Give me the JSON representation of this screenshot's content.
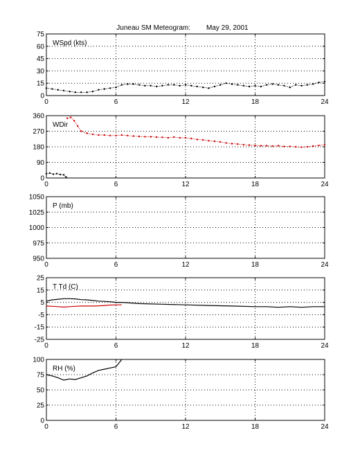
{
  "title": "Juneau SM Meteogram:",
  "date": "May 29, 2001",
  "colors": {
    "axis": "#000000",
    "grid": "#000000",
    "series_primary": "#000000",
    "series_dewpoint": "#cc0000"
  },
  "chart_data": [
    {
      "type": "scatter",
      "label": "WSpd (kts)",
      "xlim": [
        0,
        24
      ],
      "ylim": [
        0,
        75
      ],
      "grid": true,
      "xticks": [
        0,
        6,
        12,
        18,
        24
      ],
      "yticks": [
        0,
        15,
        30,
        45,
        60,
        75
      ],
      "series": [
        {
          "x": [
            0,
            0.5,
            1,
            1.5,
            2,
            2.5,
            3,
            3.5,
            4,
            4.5,
            5,
            5.5,
            6,
            6.5,
            7,
            7.5,
            8,
            8.5,
            9,
            9.5,
            10,
            10.5,
            11,
            11.5,
            12,
            12.5,
            13,
            13.5,
            14,
            14.5,
            15,
            15.5,
            16,
            16.5,
            17,
            17.5,
            18,
            18.5,
            19,
            19.5,
            20,
            20.5,
            21,
            21.5,
            22,
            22.5,
            23,
            23.5,
            24
          ],
          "y": [
            9,
            8,
            7,
            6,
            5,
            4,
            4,
            4,
            5,
            7,
            8,
            9,
            10,
            13,
            14,
            14,
            13,
            12,
            12,
            11,
            12,
            13,
            13,
            12,
            13,
            12,
            11,
            10,
            9,
            11,
            13,
            15,
            14,
            13,
            12,
            11,
            12,
            11,
            13,
            14,
            13,
            12,
            10,
            13,
            12,
            13,
            14,
            16,
            17
          ]
        }
      ]
    },
    {
      "type": "scatter",
      "label": "WDir",
      "xlim": [
        0,
        24
      ],
      "ylim": [
        0,
        360
      ],
      "grid": true,
      "xticks": [
        0,
        6,
        12,
        18,
        24
      ],
      "yticks": [
        0,
        90,
        180,
        270,
        360
      ],
      "series": [
        {
          "x": [
            0,
            0.3,
            0.6,
            0.9,
            1.2,
            1.5,
            1.7
          ],
          "y": [
            25,
            28,
            22,
            25,
            20,
            18,
            5
          ]
        },
        {
          "x": [
            1.8,
            2.1,
            2.4,
            2.7,
            3,
            3.5,
            4,
            4.5,
            5,
            5.5,
            6,
            6.5,
            7,
            7.5,
            8,
            8.5,
            9,
            9.5,
            10,
            10.5,
            11,
            11.5,
            12,
            12.5,
            13,
            13.5,
            14,
            14.5,
            15,
            15.5,
            16,
            16.5,
            17,
            17.5,
            18,
            18.5,
            19,
            19.5,
            20,
            20.5,
            21,
            21.5,
            22,
            22.5,
            23,
            23.5,
            24
          ],
          "y": [
            345,
            350,
            330,
            300,
            270,
            258,
            252,
            248,
            248,
            245,
            245,
            248,
            245,
            242,
            240,
            238,
            238,
            236,
            235,
            232,
            236,
            232,
            232,
            228,
            222,
            220,
            215,
            212,
            208,
            202,
            198,
            196,
            192,
            190,
            188,
            186,
            186,
            184,
            186,
            182,
            182,
            180,
            178,
            180,
            184,
            188,
            192
          ]
        }
      ]
    },
    {
      "type": "line",
      "label": "P (mb)",
      "xlim": [
        0,
        24
      ],
      "ylim": [
        950,
        1050
      ],
      "grid": true,
      "xticks": [
        0,
        6,
        12,
        18,
        24
      ],
      "yticks": [
        950,
        975,
        1000,
        1025,
        1050
      ],
      "series": []
    },
    {
      "type": "line",
      "label": "T Td (C)",
      "xlim": [
        0,
        24
      ],
      "ylim": [
        -25,
        25
      ],
      "grid": true,
      "xticks": [
        0,
        6,
        12,
        18,
        24
      ],
      "yticks": [
        -25,
        -15,
        -5,
        5,
        15,
        25
      ],
      "series": [
        {
          "x": [
            0,
            0.5,
            1,
            1.5,
            2,
            2.5,
            3,
            3.5,
            4,
            4.5,
            5,
            5.5,
            6,
            6.5,
            8,
            10,
            12,
            14,
            16,
            18,
            19,
            20,
            21,
            22,
            23,
            24
          ],
          "y": [
            6,
            7,
            7.5,
            8,
            8,
            7.8,
            7.2,
            7,
            6.5,
            6,
            5.8,
            5.5,
            5,
            5,
            4,
            3.5,
            3,
            2.5,
            2,
            1.5,
            1.5,
            1,
            1.5,
            1,
            1.5,
            1.5
          ]
        },
        {
          "x": [
            0,
            0.5,
            1,
            1.5,
            2,
            2.5,
            3,
            3.5,
            4,
            4.5,
            5,
            5.5,
            6,
            6.5
          ],
          "y": [
            2,
            1.8,
            1.5,
            1.2,
            1.5,
            1.8,
            2,
            2,
            2,
            2.2,
            2.5,
            2.8,
            3,
            3
          ]
        }
      ]
    },
    {
      "type": "line",
      "label": "RH (%)",
      "xlim": [
        0,
        24
      ],
      "ylim": [
        0,
        100
      ],
      "grid": true,
      "xticks": [
        0,
        6,
        12,
        18,
        24
      ],
      "yticks": [
        0,
        25,
        50,
        75,
        100
      ],
      "series": [
        {
          "x": [
            0,
            0.5,
            1,
            1.5,
            2,
            2.5,
            3,
            3.5,
            4,
            4.5,
            5,
            5.5,
            6,
            6.3,
            6.5
          ],
          "y": [
            75,
            73,
            70,
            66,
            68,
            67,
            70,
            73,
            78,
            82,
            84,
            86,
            88,
            95,
            100
          ]
        }
      ]
    }
  ]
}
